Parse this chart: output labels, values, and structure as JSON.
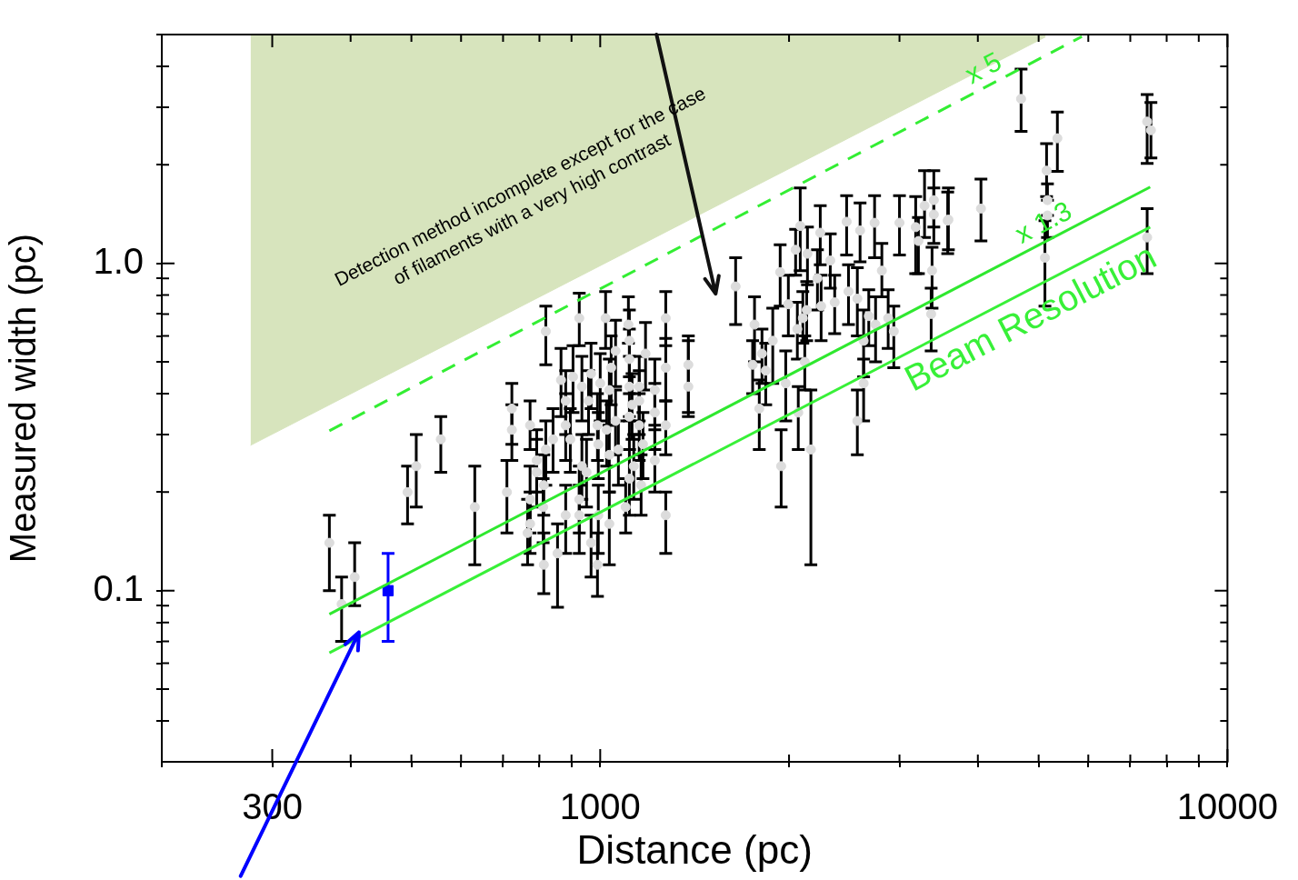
{
  "chart_data": {
    "type": "scatter",
    "xlabel": "Distance (pc)",
    "ylabel": "Measured width (pc)",
    "log": "xy",
    "xlim": [
      200,
      10000
    ],
    "ylim": [
      0.03,
      5
    ],
    "xticks": [
      {
        "value": 200,
        "label": null
      },
      {
        "value": 300,
        "label": "300"
      },
      {
        "value": 400,
        "label": null
      },
      {
        "value": 500,
        "label": null
      },
      {
        "value": 600,
        "label": null
      },
      {
        "value": 700,
        "label": null
      },
      {
        "value": 800,
        "label": null
      },
      {
        "value": 900,
        "label": null
      },
      1000,
      {
        "value": 2000,
        "label": null
      },
      {
        "value": 3000,
        "label": null
      },
      {
        "value": 4000,
        "label": null
      },
      {
        "value": 5000,
        "label": null
      },
      {
        "value": 6000,
        "label": null
      },
      {
        "value": 7000,
        "label": null
      },
      {
        "value": 8000,
        "label": null
      },
      {
        "value": 9000,
        "label": null
      },
      10000
    ],
    "yticks": [
      {
        "value": 0.04,
        "label": null
      },
      {
        "value": 0.05,
        "label": null
      },
      {
        "value": 0.06,
        "label": null
      },
      {
        "value": 0.07,
        "label": null
      },
      {
        "value": 0.08,
        "label": null
      },
      {
        "value": 0.09,
        "label": null
      },
      0.1,
      {
        "value": 0.2,
        "label": null
      },
      {
        "value": 0.3,
        "label": null
      },
      {
        "value": 0.4,
        "label": null
      },
      {
        "value": 0.5,
        "label": null
      },
      {
        "value": 0.6,
        "label": null
      },
      {
        "value": 0.7,
        "label": null
      },
      {
        "value": 0.8,
        "label": null
      },
      {
        "value": 0.9,
        "label": null
      },
      {
        "value": 1,
        "label": "1.0"
      },
      {
        "value": 2,
        "label": null
      },
      {
        "value": 3,
        "label": null
      },
      {
        "value": 4,
        "label": null
      },
      {
        "value": 5,
        "label": null
      }
    ],
    "annotations": [
      {
        "text": "Detection method incomplete except for the case\nof filaments with a very high contrast",
        "x": 1644,
        "y": 0.85
      }
    ],
    "series": [
      {
        "type": "area",
        "color": "#d7e4bd",
        "x": [
          277,
          5130
        ],
        "values": [
          0.278,
          4.92
        ]
      },
      {
        "type": "line",
        "name": "x 5",
        "color": "#33ee33",
        "line_style": "dashed",
        "x": [
          370,
          5860
        ],
        "values": [
          0.308,
          4.93
        ]
      },
      {
        "type": "line",
        "name": "x 1.3",
        "color": "#2fe82f",
        "line_style": "solid",
        "x": [
          370,
          7530
        ],
        "values": [
          0.0847,
          1.71
        ]
      },
      {
        "type": "line",
        "name": "Beam Resolution",
        "color": "#38f038",
        "line_style": "solid",
        "x": [
          370,
          7530
        ],
        "values": [
          0.0646,
          1.29
        ]
      },
      {
        "color": "#dcdcdc",
        "marker": "circle",
        "x": [
          370,
          387,
          406,
          493,
          509,
          557,
          631,
          710,
          819,
          926,
          1020,
          1109,
          1272,
          1272,
          1272,
          1382,
          1382,
          723,
          723,
          773,
          866,
          881,
          881,
          896,
          841,
          819,
          792,
          792,
          813,
          773,
          811,
          773,
          766,
          813,
          855,
          881,
          926,
          926,
          967,
          990,
          1034,
          993,
          951,
          935,
          993,
          1034,
          1069,
          1024,
          1058,
          990,
          958,
          935,
          967,
          905,
          1041,
          1058,
          1113,
          1113,
          1181,
          1154,
          1113,
          1124,
          1113,
          1154,
          1222,
          1222,
          1154,
          1170,
          1131,
          1113,
          1162,
          1098,
          1222,
          1272,
          1034,
          1000,
          1644,
          1762,
          1811,
          1750,
          1836,
          1793,
          1884,
          1936,
          1943,
          1995,
          1976,
          2049,
          2084,
          2140,
          2134,
          2104,
          2062,
          2119,
          2069,
          2167,
          2243,
          2220,
          2250,
          2327,
          2365,
          2471,
          2596,
          2738,
          2488,
          2570,
          2812,
          2680,
          2748,
          2630,
          2878,
          2938,
          2630,
          2570,
          3000,
          3184,
          3216,
          3289,
          3403,
          3403,
          3581,
          3381,
          3370,
          4688,
          5356,
          5148,
          5165,
          5165,
          5117,
          4046,
          3590,
          7447,
          7551,
          7447
        ],
        "values": [
          0.14,
          0.091,
          0.11,
          0.2,
          0.24,
          0.29,
          0.18,
          0.2,
          0.62,
          0.68,
          0.68,
          0.65,
          0.68,
          0.48,
          0.32,
          0.49,
          0.42,
          0.36,
          0.31,
          0.32,
          0.44,
          0.38,
          0.32,
          0.29,
          0.29,
          0.27,
          0.25,
          0.23,
          0.21,
          0.19,
          0.18,
          0.16,
          0.15,
          0.12,
          0.13,
          0.17,
          0.17,
          0.19,
          0.14,
          0.12,
          0.16,
          0.17,
          0.23,
          0.24,
          0.28,
          0.26,
          0.27,
          0.31,
          0.33,
          0.32,
          0.38,
          0.42,
          0.46,
          0.45,
          0.48,
          0.54,
          0.58,
          0.51,
          0.53,
          0.42,
          0.42,
          0.37,
          0.34,
          0.38,
          0.41,
          0.35,
          0.32,
          0.28,
          0.24,
          0.22,
          0.21,
          0.18,
          0.25,
          0.17,
          0.41,
          0.43,
          0.85,
          0.65,
          0.53,
          0.49,
          0.47,
          0.36,
          0.58,
          0.94,
          0.24,
          0.75,
          0.43,
          1.1,
          1.3,
          1.07,
          0.72,
          0.68,
          0.63,
          0.5,
          0.35,
          0.27,
          1.24,
          0.9,
          0.74,
          1.02,
          0.76,
          1.34,
          1.26,
          1.33,
          0.82,
          0.78,
          0.95,
          0.69,
          0.65,
          0.58,
          0.68,
          0.62,
          0.43,
          0.33,
          1.33,
          1.29,
          1.17,
          1.5,
          1.56,
          1.41,
          1.35,
          0.95,
          0.7,
          3.18,
          2.41,
          1.92,
          1.56,
          1.4,
          1.04,
          1.47,
          1.36,
          2.71,
          2.55,
          1.2
        ],
        "errors": [
          [
            0.1,
            0.17
          ],
          [
            0.07,
            0.11
          ],
          [
            0.09,
            0.14
          ],
          [
            0.16,
            0.24
          ],
          [
            0.18,
            0.3
          ],
          [
            0.23,
            0.34
          ],
          [
            0.12,
            0.24
          ],
          [
            0.15,
            0.25
          ],
          [
            0.49,
            0.74
          ],
          [
            0.56,
            0.81
          ],
          [
            0.55,
            0.82
          ],
          [
            0.57,
            0.79
          ],
          [
            0.56,
            0.82
          ],
          [
            0.38,
            0.59
          ],
          [
            0.26,
            0.38
          ],
          [
            0.34,
            0.6
          ],
          [
            0.35,
            0.58
          ],
          [
            0.28,
            0.43
          ],
          [
            0.25,
            0.37
          ],
          [
            0.27,
            0.38
          ],
          [
            0.34,
            0.55
          ],
          [
            0.3,
            0.47
          ],
          [
            0.25,
            0.4
          ],
          [
            0.23,
            0.36
          ],
          [
            0.23,
            0.36
          ],
          [
            0.21,
            0.33
          ],
          [
            0.2,
            0.31
          ],
          [
            0.18,
            0.29
          ],
          [
            0.17,
            0.26
          ],
          [
            0.15,
            0.24
          ],
          [
            0.14,
            0.22
          ],
          [
            0.13,
            0.2
          ],
          [
            0.12,
            0.19
          ],
          [
            0.098,
            0.15
          ],
          [
            0.089,
            0.16
          ],
          [
            0.13,
            0.21
          ],
          [
            0.13,
            0.21
          ],
          [
            0.15,
            0.24
          ],
          [
            0.11,
            0.17
          ],
          [
            0.096,
            0.15
          ],
          [
            0.12,
            0.2
          ],
          [
            0.13,
            0.21
          ],
          [
            0.18,
            0.29
          ],
          [
            0.19,
            0.3
          ],
          [
            0.22,
            0.35
          ],
          [
            0.2,
            0.32
          ],
          [
            0.21,
            0.33
          ],
          [
            0.24,
            0.38
          ],
          [
            0.26,
            0.41
          ],
          [
            0.25,
            0.4
          ],
          [
            0.3,
            0.47
          ],
          [
            0.33,
            0.52
          ],
          [
            0.36,
            0.57
          ],
          [
            0.35,
            0.56
          ],
          [
            0.37,
            0.6
          ],
          [
            0.42,
            0.67
          ],
          [
            0.45,
            0.72
          ],
          [
            0.4,
            0.63
          ],
          [
            0.41,
            0.66
          ],
          [
            0.33,
            0.52
          ],
          [
            0.33,
            0.52
          ],
          [
            0.29,
            0.46
          ],
          [
            0.27,
            0.34
          ],
          [
            0.3,
            0.47
          ],
          [
            0.32,
            0.51
          ],
          [
            0.27,
            0.43
          ],
          [
            0.25,
            0.4
          ],
          [
            0.22,
            0.35
          ],
          [
            0.19,
            0.3
          ],
          [
            0.17,
            0.27
          ],
          [
            0.17,
            0.26
          ],
          [
            0.15,
            0.22
          ],
          [
            0.2,
            0.31
          ],
          [
            0.13,
            0.2
          ],
          [
            0.32,
            0.51
          ],
          [
            0.33,
            0.53
          ],
          [
            0.65,
            1.04
          ],
          [
            0.5,
            0.79
          ],
          [
            0.43,
            0.63
          ],
          [
            0.4,
            0.58
          ],
          [
            0.37,
            0.57
          ],
          [
            0.27,
            0.44
          ],
          [
            0.43,
            0.73
          ],
          [
            0.74,
            1.14
          ],
          [
            0.18,
            0.31
          ],
          [
            0.6,
            0.92
          ],
          [
            0.33,
            0.54
          ],
          [
            0.92,
            1.27
          ],
          [
            0.95,
            1.7
          ],
          [
            0.86,
            1.29
          ],
          [
            0.58,
            0.88
          ],
          [
            0.57,
            0.82
          ],
          [
            0.51,
            0.76
          ],
          [
            0.41,
            0.6
          ],
          [
            0.27,
            0.42
          ],
          [
            0.12,
            0.41
          ],
          [
            0.99,
            1.5
          ],
          [
            0.72,
            1.1
          ],
          [
            0.58,
            0.92
          ],
          [
            0.84,
            1.23
          ],
          [
            0.61,
            0.92
          ],
          [
            1.06,
            1.61
          ],
          [
            1.01,
            1.53
          ],
          [
            1.04,
            1.61
          ],
          [
            0.65,
            0.99
          ],
          [
            0.6,
            0.97
          ],
          [
            0.79,
            1.15
          ],
          [
            0.56,
            0.83
          ],
          [
            0.5,
            0.79
          ],
          [
            0.45,
            0.72
          ],
          [
            0.55,
            0.83
          ],
          [
            0.48,
            0.74
          ],
          [
            0.33,
            0.51
          ],
          [
            0.26,
            0.41
          ],
          [
            1.06,
            1.61
          ],
          [
            0.93,
            1.6
          ],
          [
            0.93,
            1.38
          ],
          [
            1.2,
            1.92
          ],
          [
            1.29,
            1.92
          ],
          [
            1.15,
            1.7
          ],
          [
            1.07,
            1.65
          ],
          [
            0.73,
            1.12
          ],
          [
            0.54,
            0.84
          ],
          [
            2.53,
            3.92
          ],
          [
            1.91,
            2.9
          ],
          [
            1.6,
            2.32
          ],
          [
            1.56,
            1.75
          ],
          [
            1.2,
            1.4
          ],
          [
            0.74,
            1.35
          ],
          [
            1.17,
            1.81
          ],
          [
            1.1,
            1.7
          ],
          [
            2.02,
            3.28
          ],
          [
            2.1,
            3.1
          ],
          [
            0.93,
            1.47
          ]
        ]
      },
      {
        "color": "#0000ff",
        "marker": "square",
        "x": [
          459
        ],
        "values": [
          0.1
        ],
        "errors": [
          [
            0.07,
            0.13
          ]
        ]
      }
    ]
  }
}
